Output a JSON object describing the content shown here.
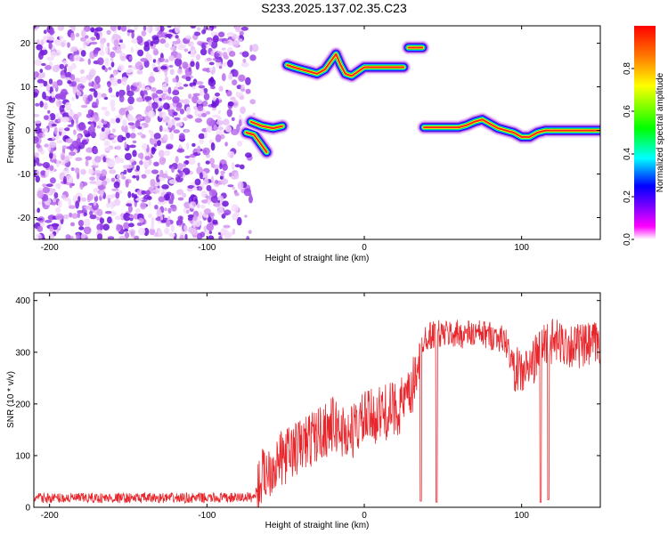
{
  "figure": {
    "title": "S233.2025.137.02.35.C23"
  },
  "colors": {
    "snr_line": "#e8262b",
    "background": "#ffffff"
  },
  "chart_data": [
    {
      "type": "heatmap",
      "xlabel": "Height of straight line (km)",
      "ylabel": "Frequency (Hz)",
      "xlim": [
        -210,
        150
      ],
      "ylim": [
        -25,
        24
      ],
      "x_ticks": [
        -200,
        -100,
        0,
        100
      ],
      "y_ticks": [
        -20,
        -10,
        0,
        10,
        20
      ],
      "colorbar": {
        "label": "Normalized spectral amplitude",
        "range": [
          0,
          1
        ],
        "ticks": [
          0.0,
          0.2,
          0.4,
          0.6,
          0.8
        ],
        "colormap": [
          "#ffffff",
          "#ff00ff",
          "#8000ff",
          "#0000ff",
          "#00ffff",
          "#00ff00",
          "#ffff00",
          "#ff0000"
        ]
      },
      "noise_region": {
        "x_range": [
          -210,
          -68
        ],
        "y_range": [
          -25,
          24
        ]
      },
      "ridges": [
        {
          "x": [
            -75,
            -70,
            -66,
            -62
          ],
          "y": [
            -0.5,
            -1,
            -3,
            -5
          ]
        },
        {
          "x": [
            -72,
            -65,
            -58,
            -52
          ],
          "y": [
            2,
            1,
            0.5,
            1
          ]
        },
        {
          "x": [
            -49,
            -45,
            -40,
            -35,
            -30,
            -25,
            -20,
            -18,
            -15,
            -12,
            -8,
            -4,
            0,
            5,
            10,
            15,
            20,
            25
          ],
          "y": [
            15,
            14.5,
            14,
            13.5,
            13,
            14,
            16.5,
            17.5,
            15,
            13,
            12.5,
            13.5,
            14.5,
            14.5,
            14.5,
            14.5,
            14.5,
            14.5
          ]
        },
        {
          "x": [
            28,
            31,
            34,
            37
          ],
          "y": [
            19,
            19,
            19,
            19
          ]
        },
        {
          "x": [
            38,
            45,
            50,
            55,
            60,
            65,
            70,
            75,
            80,
            85,
            90,
            95,
            100,
            105,
            110,
            115,
            120,
            125,
            130,
            135,
            140,
            150
          ],
          "y": [
            0.7,
            0.7,
            0.7,
            0.7,
            0.7,
            1.2,
            2,
            2.5,
            1.5,
            0.5,
            0,
            -0.5,
            -1.5,
            -1.5,
            -0.5,
            0,
            0,
            0,
            0,
            0,
            0,
            0
          ]
        }
      ]
    },
    {
      "type": "line",
      "xlabel": "Height of straight line (km)",
      "ylabel": "SNR (10 * v/v)",
      "xlim": [
        -210,
        150
      ],
      "ylim": [
        0,
        415
      ],
      "x_ticks": [
        -200,
        -100,
        0,
        100
      ],
      "y_ticks": [
        0,
        100,
        200,
        300,
        400
      ],
      "series": [
        {
          "x": [
            -210,
            -190,
            -170,
            -150,
            -130,
            -110,
            -90,
            -70,
            -65,
            -60,
            -50,
            -40,
            -30,
            -20,
            -10,
            0,
            10,
            20,
            30,
            33,
            38,
            45,
            55,
            65,
            75,
            85,
            90,
            95,
            100,
            105,
            110,
            115,
            120,
            130,
            140,
            150
          ],
          "y": [
            18,
            18,
            18,
            18,
            18,
            18,
            18,
            20,
            60,
            75,
            100,
            120,
            140,
            160,
            140,
            170,
            180,
            190,
            215,
            270,
            330,
            335,
            335,
            335,
            335,
            330,
            320,
            270,
            260,
            270,
            295,
            320,
            320,
            315,
            310,
            320
          ],
          "dips": [
            {
              "x": 36,
              "y": 12
            },
            {
              "x": 46,
              "y": 10
            },
            {
              "x": 112,
              "y": 10
            },
            {
              "x": 117,
              "y": 15
            }
          ]
        }
      ]
    }
  ]
}
